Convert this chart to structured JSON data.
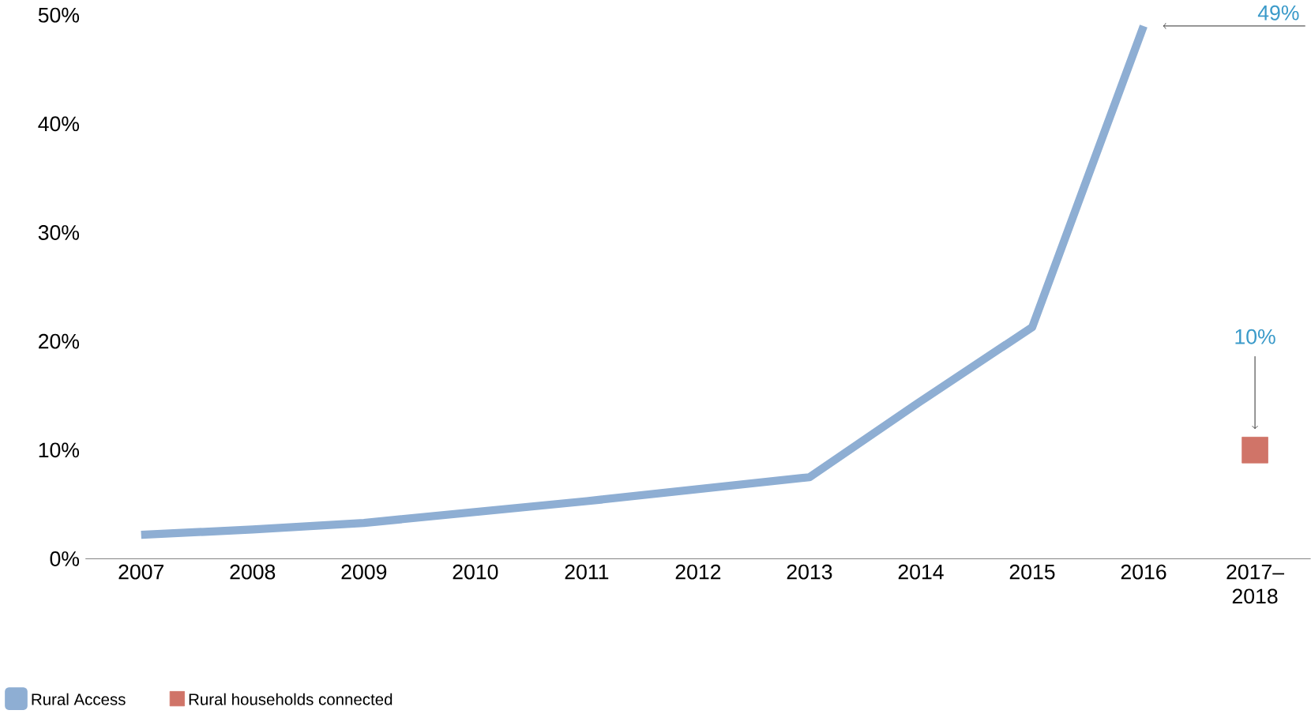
{
  "chart_data": {
    "type": "line",
    "categories": [
      "2007",
      "2008",
      "2009",
      "2010",
      "2011",
      "2012",
      "2013",
      "2014",
      "2015",
      "2016",
      "2017–2018"
    ],
    "series": [
      {
        "name": "Rural Access",
        "type": "line",
        "color": "#8eaed3",
        "values": [
          2.2,
          2.7,
          3.3,
          4.3,
          5.3,
          6.4,
          7.5,
          14.5,
          21.3,
          49,
          null
        ]
      },
      {
        "name": "Rural households connected",
        "type": "scatter",
        "marker": "square",
        "color": "#d07468",
        "values": [
          null,
          null,
          null,
          null,
          null,
          null,
          null,
          null,
          null,
          null,
          10
        ]
      }
    ],
    "ylim": [
      0,
      50
    ],
    "yticks": [
      {
        "value": 0,
        "label": "0%"
      },
      {
        "value": 10,
        "label": "10%"
      },
      {
        "value": 20,
        "label": "20%"
      },
      {
        "value": 30,
        "label": "30%"
      },
      {
        "value": 40,
        "label": "40%"
      },
      {
        "value": 50,
        "label": "50%"
      }
    ],
    "annotations": [
      "49%",
      "10%"
    ],
    "legend": "bottom left",
    "grid": false
  }
}
